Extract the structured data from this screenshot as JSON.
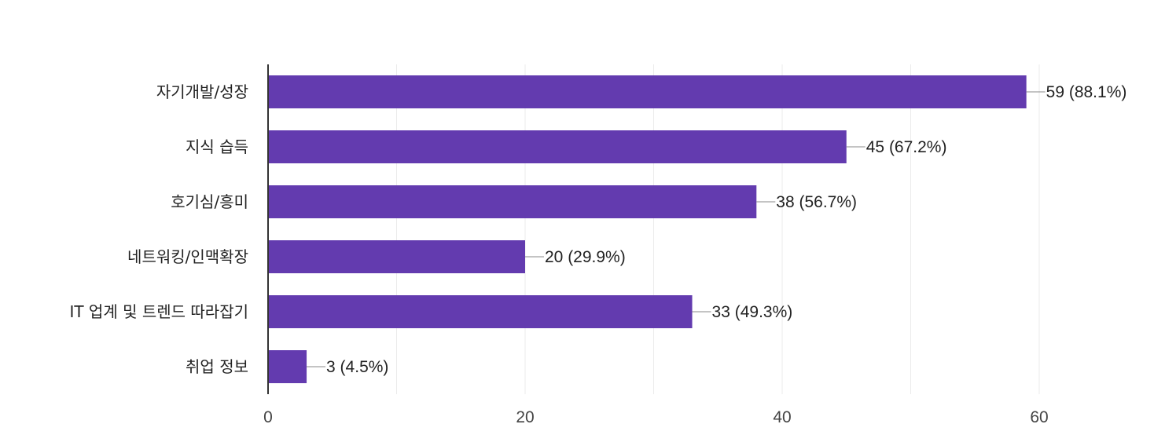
{
  "chart_data": {
    "type": "bar",
    "orientation": "horizontal",
    "categories": [
      "자기개발/성장",
      "지식 습득",
      "호기심/흥미",
      "네트워킹/인맥확장",
      "IT 업계 및 트렌드 따라잡기",
      "취업 정보"
    ],
    "values": [
      59,
      45,
      38,
      20,
      33,
      3
    ],
    "data_labels": [
      "59 (88.1%)",
      "45 (67.2%)",
      "38 (56.7%)",
      "20 (29.9%)",
      "33 (49.3%)",
      "3 (4.5%)"
    ],
    "title": "",
    "xlabel": "",
    "ylabel": "",
    "xlim": [
      0,
      60
    ],
    "x_ticks": [
      "0",
      "20",
      "40",
      "60"
    ],
    "grid": true,
    "legend": "none",
    "colors": {
      "bar": "#633BAF",
      "axis": "#333333",
      "grid": "#EBEBEB",
      "leader": "#888888"
    }
  }
}
